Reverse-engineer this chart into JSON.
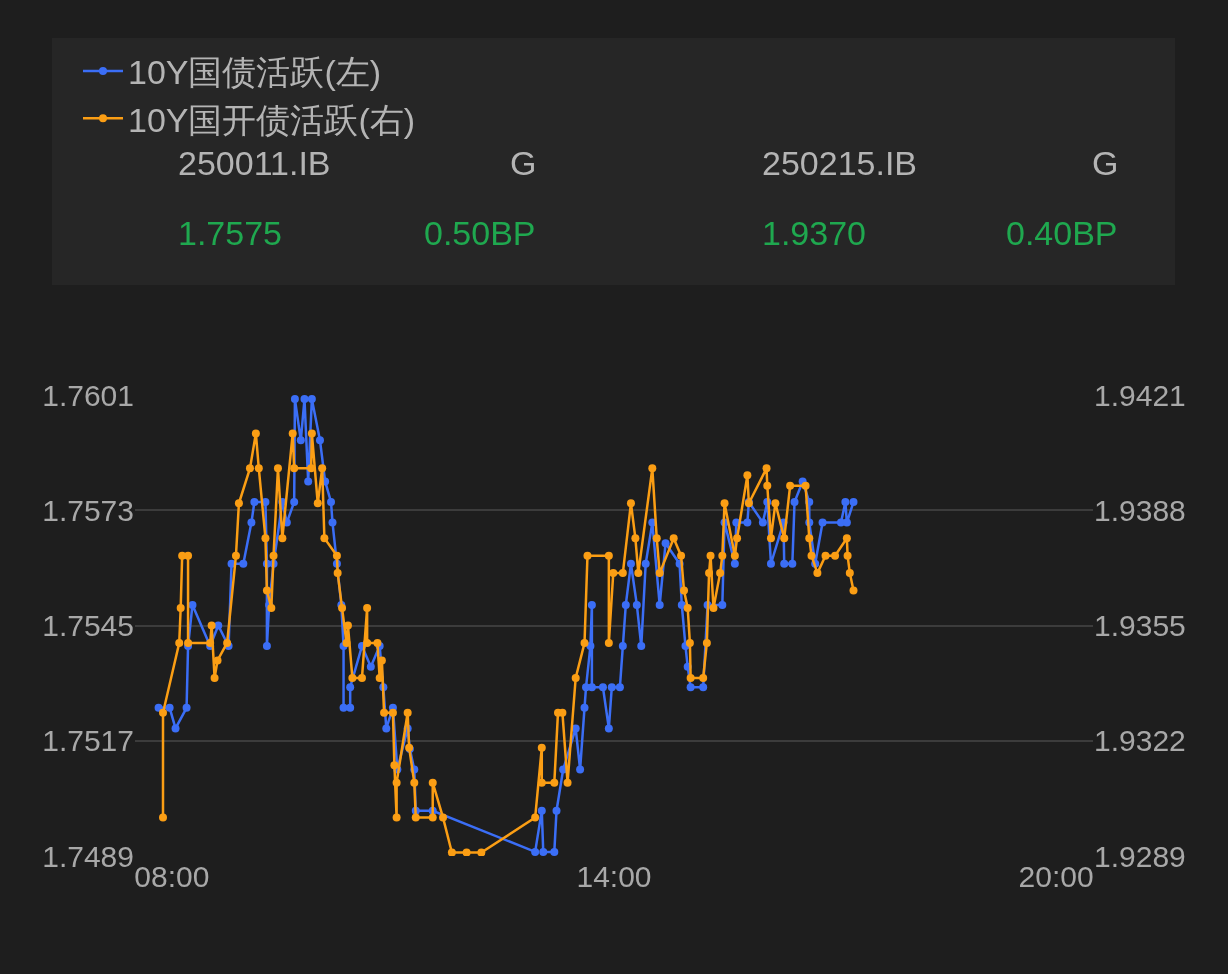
{
  "chart_data": {
    "type": "line",
    "xlim": [
      7.5,
      20.5
    ],
    "xticks": [
      {
        "value": 8,
        "label": "08:00"
      },
      {
        "value": 14,
        "label": "14:00"
      },
      {
        "value": 20,
        "label": "20:00"
      }
    ],
    "ylim": [
      1.7489,
      1.7601
    ],
    "yticks": [
      1.7489,
      1.7517,
      1.7545,
      1.7573,
      1.7601
    ],
    "y2lim": [
      1.9289,
      1.9421
    ],
    "y2ticks": [
      1.9289,
      1.9322,
      1.9355,
      1.9388,
      1.9421
    ],
    "grid": "y",
    "legend": "top",
    "marker": "circle",
    "line_style": "solid",
    "annotations": [
      "250011.IB",
      "G",
      "1.7575",
      "0.50BP",
      "250215.IB",
      "G",
      "1.9370",
      "0.40BP"
    ],
    "series": [
      {
        "name": "10Y国债活跃(左)",
        "color": "#3b6ef6",
        "axis": "y",
        "x": [
          7.82,
          7.97,
          8.05,
          8.2,
          8.22,
          8.28,
          8.52,
          8.63,
          8.77,
          8.81,
          8.97,
          9.08,
          9.12,
          9.27,
          9.29,
          9.29,
          9.32,
          9.38,
          9.5,
          9.56,
          9.66,
          9.67,
          9.75,
          9.8,
          9.85,
          9.9,
          10.01,
          10.08,
          10.16,
          10.18,
          10.24,
          10.3,
          10.33,
          10.33,
          10.42,
          10.42,
          10.58,
          10.7,
          10.82,
          10.87,
          10.91,
          11.0,
          11.06,
          11.2,
          11.23,
          11.29,
          11.31,
          11.54,
          12.93,
          13.02,
          13.04,
          13.19,
          13.22,
          13.31,
          13.48,
          13.54,
          13.6,
          13.62,
          13.68,
          13.7,
          13.7,
          13.85,
          13.93,
          13.97,
          14.08,
          14.12,
          14.16,
          14.23,
          14.31,
          14.37,
          14.43,
          14.52,
          14.62,
          14.7,
          14.89,
          14.92,
          14.97,
          15.0,
          15.04,
          15.21,
          15.27,
          15.47,
          15.5,
          15.64,
          15.66,
          15.81,
          15.83,
          16.02,
          16.08,
          16.13,
          16.3,
          16.31,
          16.42,
          16.45,
          16.56,
          16.65,
          16.65,
          16.73,
          16.83,
          17.08,
          17.14,
          17.16,
          17.25
        ],
        "values": [
          1.7525,
          1.7525,
          1.752,
          1.7525,
          1.754,
          1.755,
          1.754,
          1.7545,
          1.754,
          1.756,
          1.756,
          1.757,
          1.7575,
          1.7575,
          1.756,
          1.754,
          1.755,
          1.756,
          1.7575,
          1.757,
          1.7575,
          1.76,
          1.759,
          1.76,
          1.758,
          1.76,
          1.759,
          1.758,
          1.7575,
          1.757,
          1.756,
          1.755,
          1.754,
          1.7525,
          1.7525,
          1.753,
          1.754,
          1.7535,
          1.754,
          1.753,
          1.752,
          1.7525,
          1.751,
          1.752,
          1.7515,
          1.751,
          1.75,
          1.75,
          1.749,
          1.75,
          1.749,
          1.749,
          1.75,
          1.751,
          1.752,
          1.751,
          1.7525,
          1.753,
          1.754,
          1.755,
          1.753,
          1.753,
          1.752,
          1.753,
          1.753,
          1.754,
          1.755,
          1.756,
          1.755,
          1.754,
          1.756,
          1.757,
          1.755,
          1.7565,
          1.756,
          1.755,
          1.754,
          1.7535,
          1.753,
          1.753,
          1.755,
          1.755,
          1.757,
          1.756,
          1.757,
          1.757,
          1.7575,
          1.757,
          1.7575,
          1.756,
          1.757,
          1.756,
          1.756,
          1.7575,
          1.758,
          1.7575,
          1.757,
          1.756,
          1.757,
          1.757,
          1.7575,
          1.757,
          1.7575
        ]
      },
      {
        "name": "10Y国开债活跃(右)",
        "color": "#fb9e14",
        "axis": "y2",
        "x": [
          7.88,
          7.88,
          8.1,
          8.12,
          8.14,
          8.22,
          8.22,
          8.52,
          8.54,
          8.58,
          8.62,
          8.75,
          8.87,
          8.91,
          9.06,
          9.14,
          9.18,
          9.27,
          9.29,
          9.35,
          9.38,
          9.44,
          9.5,
          9.64,
          9.66,
          9.89,
          9.9,
          9.98,
          10.04,
          10.07,
          10.24,
          10.25,
          10.31,
          10.37,
          10.39,
          10.45,
          10.58,
          10.65,
          10.65,
          10.79,
          10.82,
          10.85,
          10.88,
          11.0,
          11.02,
          11.05,
          11.05,
          11.2,
          11.22,
          11.29,
          11.31,
          11.54,
          11.54,
          11.68,
          11.8,
          12.0,
          12.2,
          12.93,
          13.02,
          13.02,
          13.19,
          13.24,
          13.3,
          13.37,
          13.48,
          13.6,
          13.64,
          13.93,
          13.93,
          13.99,
          14.12,
          14.23,
          14.29,
          14.33,
          14.52,
          14.58,
          14.62,
          14.81,
          14.91,
          14.95,
          15.0,
          15.03,
          15.04,
          15.21,
          15.26,
          15.29,
          15.31,
          15.35,
          15.44,
          15.47,
          15.5,
          15.64,
          15.67,
          15.81,
          15.83,
          16.07,
          16.08,
          16.13,
          16.19,
          16.31,
          16.39,
          16.6,
          16.65,
          16.68,
          16.76,
          16.87,
          17.0,
          17.16,
          17.17,
          17.2,
          17.25
        ],
        "values": [
          1.93,
          1.933,
          1.935,
          1.936,
          1.9375,
          1.9375,
          1.935,
          1.935,
          1.9355,
          1.934,
          1.9345,
          1.935,
          1.9375,
          1.939,
          1.94,
          1.941,
          1.94,
          1.938,
          1.9365,
          1.936,
          1.9375,
          1.94,
          1.938,
          1.941,
          1.94,
          1.94,
          1.941,
          1.939,
          1.94,
          1.938,
          1.9375,
          1.937,
          1.936,
          1.935,
          1.9355,
          1.934,
          1.934,
          1.936,
          1.935,
          1.935,
          1.934,
          1.9345,
          1.933,
          1.933,
          1.9315,
          1.93,
          1.931,
          1.933,
          1.932,
          1.931,
          1.93,
          1.93,
          1.931,
          1.93,
          1.929,
          1.929,
          1.929,
          1.93,
          1.932,
          1.931,
          1.931,
          1.933,
          1.933,
          1.931,
          1.934,
          1.935,
          1.9375,
          1.9375,
          1.935,
          1.937,
          1.937,
          1.939,
          1.938,
          1.937,
          1.94,
          1.938,
          1.937,
          1.938,
          1.9375,
          1.9365,
          1.936,
          1.935,
          1.934,
          1.934,
          1.935,
          1.937,
          1.9375,
          1.936,
          1.937,
          1.9375,
          1.939,
          1.9375,
          1.938,
          1.9398,
          1.939,
          1.94,
          1.9395,
          1.938,
          1.939,
          1.938,
          1.9395,
          1.9395,
          1.938,
          1.9375,
          1.937,
          1.9375,
          1.9375,
          1.938,
          1.9375,
          1.937,
          1.9365
        ]
      }
    ]
  }
}
